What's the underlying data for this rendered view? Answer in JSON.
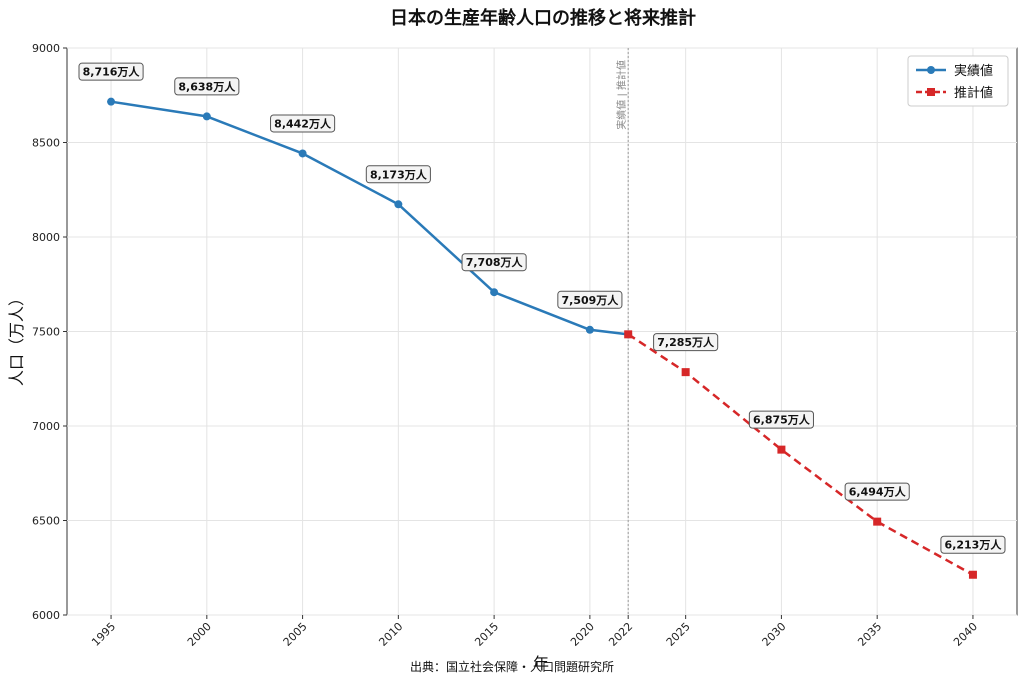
{
  "chart_data": {
    "type": "line",
    "title": "日本の生産年齢人口の推移と将来推計",
    "xlabel": "年",
    "ylabel": "人口（万人）",
    "source": "出典：国立社会保障・人口問題研究所",
    "ylim": [
      6000,
      9000
    ],
    "yticks": [
      "6000",
      "6500",
      "7000",
      "7500",
      "8000",
      "8500",
      "9000"
    ],
    "xticks": [
      "1995",
      "2000",
      "2005",
      "2010",
      "2015",
      "2020",
      "2022",
      "2025",
      "2030",
      "2035",
      "2040"
    ],
    "grid": true,
    "legend_position": "top-right",
    "divider": {
      "x": 2022,
      "label": "実績値 | 推計値"
    },
    "series": [
      {
        "name": "実績値",
        "color": "#2a7ab8",
        "style": "solid",
        "marker": "circle",
        "points": [
          {
            "x": 1995,
            "y": 8716,
            "label": "8,716万人"
          },
          {
            "x": 2000,
            "y": 8638,
            "label": "8,638万人"
          },
          {
            "x": 2005,
            "y": 8442,
            "label": "8,442万人"
          },
          {
            "x": 2010,
            "y": 8173,
            "label": "8,173万人"
          },
          {
            "x": 2015,
            "y": 7708,
            "label": "7,708万人"
          },
          {
            "x": 2020,
            "y": 7509,
            "label": "7,509万人"
          },
          {
            "x": 2022,
            "y": 7485,
            "label": ""
          }
        ]
      },
      {
        "name": "推計値",
        "color": "#d62728",
        "style": "dashed",
        "marker": "square",
        "points": [
          {
            "x": 2022,
            "y": 7485,
            "label": ""
          },
          {
            "x": 2025,
            "y": 7285,
            "label": "7,285万人"
          },
          {
            "x": 2030,
            "y": 6875,
            "label": "6,875万人"
          },
          {
            "x": 2035,
            "y": 6494,
            "label": "6,494万人"
          },
          {
            "x": 2040,
            "y": 6213,
            "label": "6,213万人"
          }
        ]
      }
    ]
  }
}
